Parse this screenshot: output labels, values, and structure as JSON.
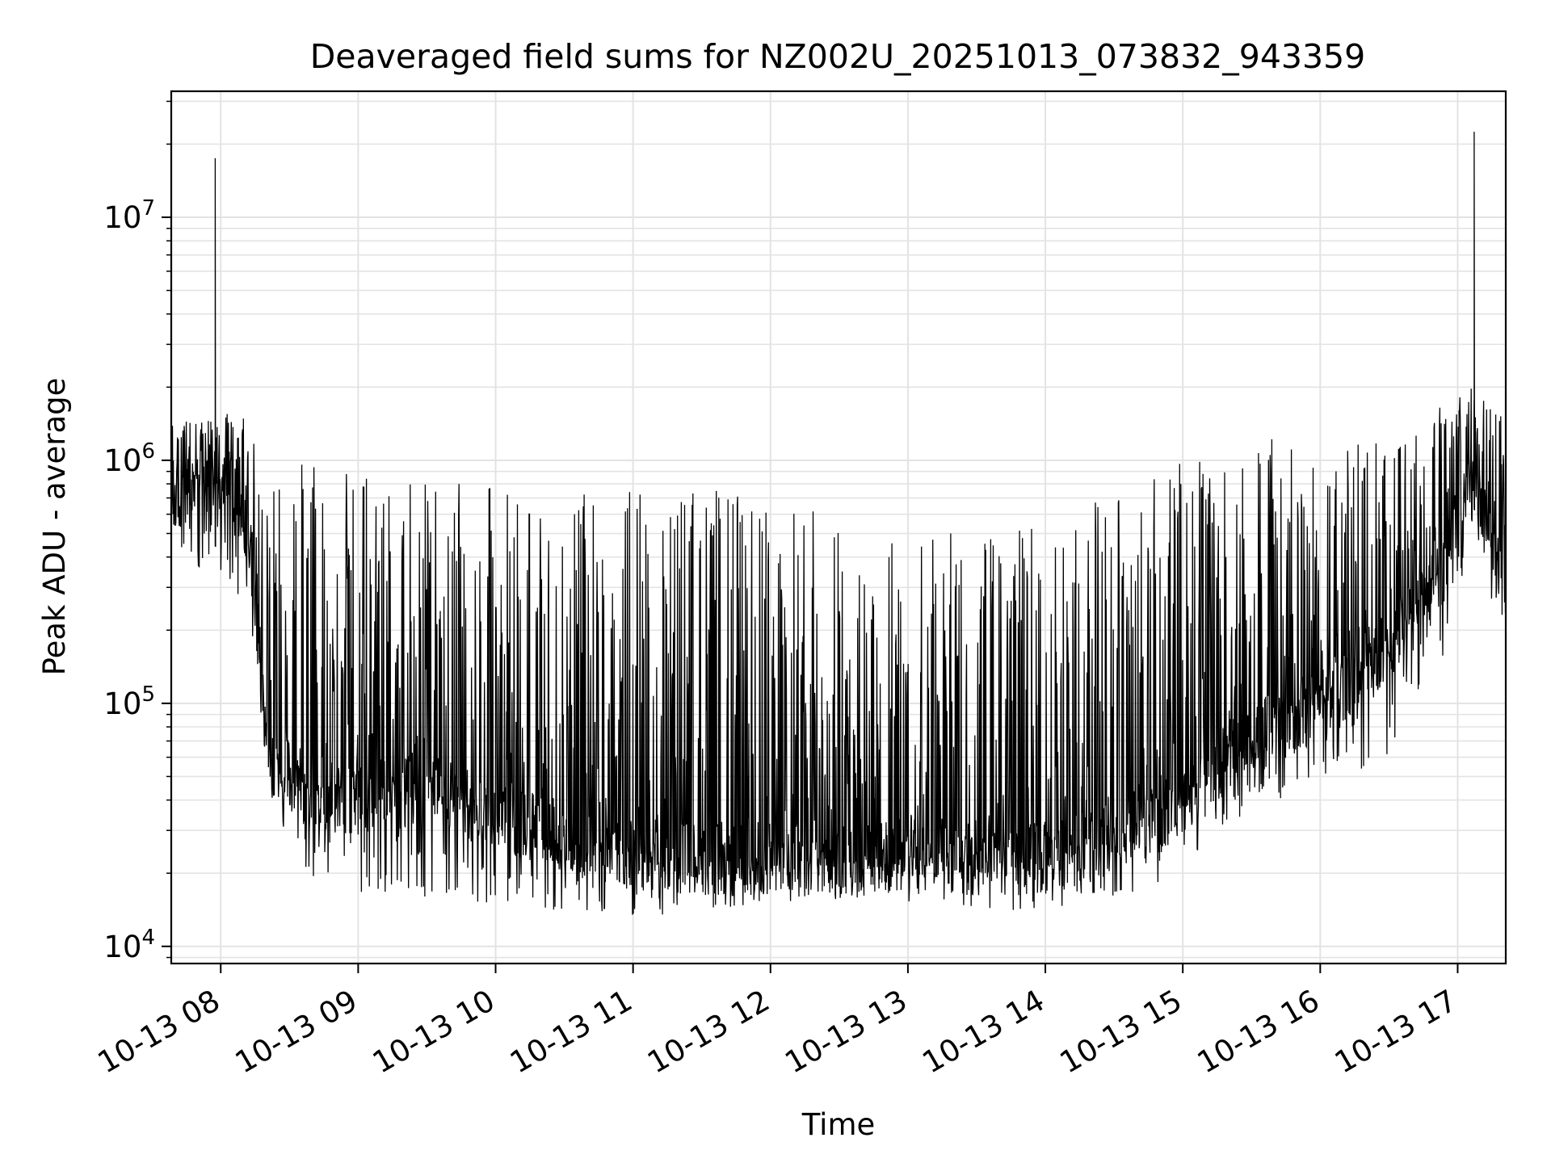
{
  "chart_data": {
    "type": "line",
    "title": "Deaveraged field sums for NZ002U_20251013_073832_943359",
    "xlabel": "Time",
    "ylabel": "Peak ADU - average",
    "yscale": "log",
    "ylim": [
      8500,
      33000000
    ],
    "xlim_hours": [
      7.64,
      17.35
    ],
    "grid": true,
    "line_color": "#000000",
    "x_ticks": [
      {
        "hour": 8,
        "label": "10-13 08"
      },
      {
        "hour": 9,
        "label": "10-13 09"
      },
      {
        "hour": 10,
        "label": "10-13 10"
      },
      {
        "hour": 11,
        "label": "10-13 11"
      },
      {
        "hour": 12,
        "label": "10-13 12"
      },
      {
        "hour": 13,
        "label": "10-13 13"
      },
      {
        "hour": 14,
        "label": "10-13 14"
      },
      {
        "hour": 15,
        "label": "10-13 15"
      },
      {
        "hour": 16,
        "label": "10-13 16"
      },
      {
        "hour": 17,
        "label": "10-13 17"
      }
    ],
    "y_ticks": [
      {
        "value": 10000,
        "base": "10",
        "exp": "4"
      },
      {
        "value": 100000,
        "base": "10",
        "exp": "5"
      },
      {
        "value": 1000000,
        "base": "10",
        "exp": "6"
      },
      {
        "value": 10000000,
        "base": "10",
        "exp": "7"
      }
    ],
    "series": [
      {
        "name": "Peak ADU - average",
        "envelope": {
          "hours": [
            7.64,
            8.0,
            8.2,
            8.35,
            8.6,
            9.0,
            9.5,
            10.0,
            10.5,
            11.0,
            11.5,
            12.0,
            12.5,
            13.0,
            13.5,
            14.0,
            14.5,
            15.0,
            15.2,
            15.5,
            16.0,
            16.5,
            16.9,
            17.1,
            17.35
          ],
          "baseline": [
            700000,
            800000,
            550000,
            60000,
            45000,
            40000,
            45000,
            35000,
            28000,
            24000,
            23000,
            23000,
            22000,
            24000,
            25000,
            23000,
            28000,
            40000,
            55000,
            70000,
            100000,
            170000,
            350000,
            900000,
            300000
          ],
          "peak_level": [
            1400000,
            1600000,
            1500000,
            800000,
            1000000,
            900000,
            800000,
            800000,
            700000,
            800000,
            800000,
            700000,
            600000,
            500000,
            500000,
            600000,
            700000,
            1000000,
            1100000,
            1300000,
            1200000,
            1200000,
            1800000,
            2000000,
            1500000
          ],
          "trough": [
            450000,
            300000,
            250000,
            40000,
            20000,
            16000,
            16000,
            15000,
            14000,
            13000,
            14000,
            15000,
            16000,
            15000,
            14000,
            14000,
            16000,
            18000,
            30000,
            35000,
            50000,
            55000,
            120000,
            500000,
            160000
          ]
        },
        "spikes": [
          {
            "hour": 7.96,
            "value": 17500000
          },
          {
            "hour": 17.12,
            "value": 22500000
          }
        ]
      }
    ]
  }
}
